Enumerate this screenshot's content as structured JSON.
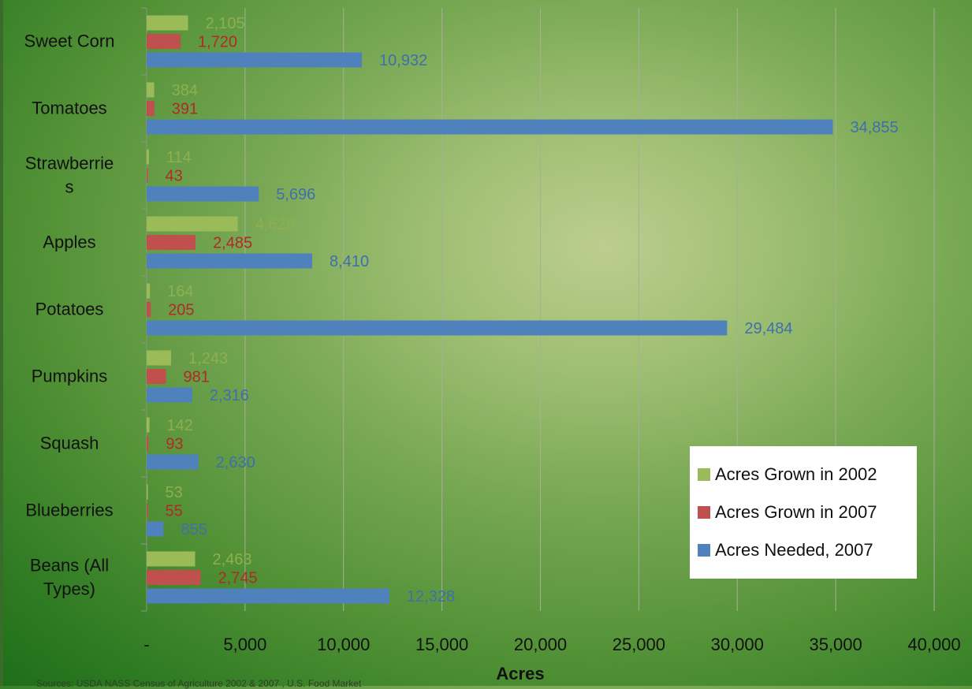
{
  "chart_data": {
    "type": "bar",
    "orientation": "horizontal",
    "categories": [
      "Sweet Corn",
      "Tomatoes",
      "Strawberries",
      "Apples",
      "Potatoes",
      "Pumpkins",
      "Squash",
      "Blueberries",
      "Beans (All Types)"
    ],
    "category_labels": [
      [
        "Sweet Corn"
      ],
      [
        "Tomatoes"
      ],
      [
        "Strawberrie",
        "s"
      ],
      [
        "Apples"
      ],
      [
        "Potatoes"
      ],
      [
        "Pumpkins"
      ],
      [
        "Squash"
      ],
      [
        "Blueberries"
      ],
      [
        "Beans (All",
        "Types)"
      ]
    ],
    "series": [
      {
        "name": "Acres Grown in 2002",
        "color": "#9bbb59",
        "values": [
          2105,
          384,
          114,
          4628,
          164,
          1243,
          142,
          53,
          2463
        ],
        "labels": [
          "2,105",
          "384",
          "114",
          "4,628",
          "164",
          "1,243",
          "142",
          "53",
          "2,463"
        ]
      },
      {
        "name": "Acres Grown in 2007",
        "color": "#c0504d",
        "values": [
          1720,
          391,
          43,
          2485,
          205,
          981,
          93,
          55,
          2745
        ],
        "labels": [
          "1,720",
          "391",
          "43",
          "2,485",
          "205",
          "981",
          "93",
          "55",
          "2,745"
        ]
      },
      {
        "name": "Acres Needed, 2007",
        "color": "#4f81bd",
        "values": [
          10932,
          34855,
          5696,
          8410,
          29484,
          2316,
          2630,
          855,
          12328
        ],
        "labels": [
          "10,932",
          "34,855",
          "5,696",
          "8,410",
          "29,484",
          "2,316",
          "2,630",
          "855",
          "12,328"
        ]
      }
    ],
    "label_colors": [
      "#8fae50",
      "#b02a28",
      "#3f6fad"
    ],
    "xlabel": "Acres",
    "xlim": [
      0,
      40000
    ],
    "x_ticks": [
      0,
      5000,
      10000,
      15000,
      20000,
      25000,
      30000,
      35000,
      40000
    ],
    "x_tick_labels": [
      "-",
      "5,000",
      "10,000",
      "15,000",
      "20,000",
      "25,000",
      "30,000",
      "35,000",
      "40,000"
    ],
    "grid": true,
    "legend_position": "bottom-right",
    "source_note": "Sources: USDA NASS Census of Agriculture 2002 & 2007 , U.S. Food Market"
  }
}
